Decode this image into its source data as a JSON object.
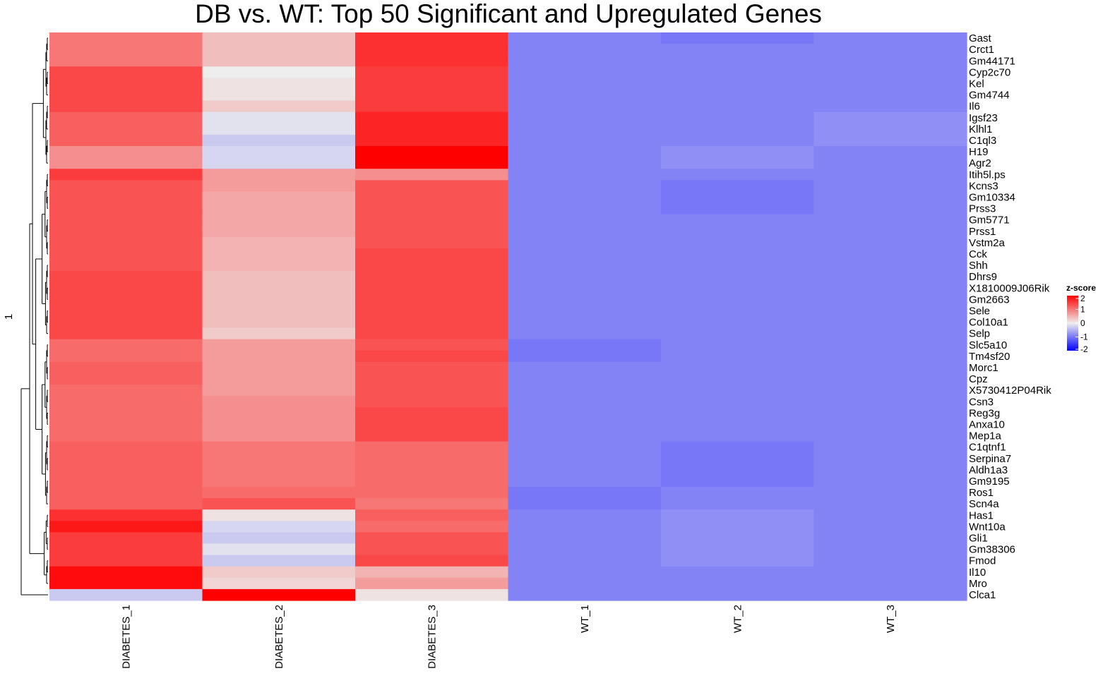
{
  "chart_data": {
    "type": "heatmap",
    "title": "DB vs. WT: Top 50 Significant and Upregulated Genes",
    "columns": [
      "DIABETES_1",
      "DIABETES_2",
      "DIABETES_3",
      "WT_1",
      "WT_2",
      "WT_3"
    ],
    "rows": [
      "Gast",
      "Crct1",
      "Gm44171",
      "Cyp2c70",
      "Kel",
      "Gm4744",
      "Il6",
      "Igsf23",
      "Klhl1",
      "C1ql3",
      "H19",
      "Agr2",
      "Itih5l.ps",
      "Kcns3",
      "Gm10334",
      "Prss3",
      "Gm5771",
      "Prss1",
      "Vstm2a",
      "Cck",
      "Shh",
      "Dhrs9",
      "X1810009J06Rik",
      "Gm2663",
      "Sele",
      "Col10a1",
      "Selp",
      "Slc5a10",
      "Tm4sf20",
      "Morc1",
      "Cpz",
      "X5730412P04Rik",
      "Csn3",
      "Reg3g",
      "Anxa10",
      "Mep1a",
      "C1qtnf1",
      "Serpina7",
      "Aldh1a3",
      "Gm9195",
      "Ros1",
      "Scn4a",
      "Has1",
      "Wnt10a",
      "Gli1",
      "Gm38306",
      "Fmod",
      "Il10",
      "Mro",
      "Clca1"
    ],
    "values": [
      [
        1.0,
        0.4,
        1.6,
        -0.9,
        -1.0,
        -0.9
      ],
      [
        1.0,
        0.4,
        1.6,
        -0.9,
        -0.9,
        -0.9
      ],
      [
        1.0,
        0.4,
        1.6,
        -0.9,
        -0.9,
        -0.9
      ],
      [
        1.4,
        0.0,
        1.5,
        -0.9,
        -0.9,
        -0.9
      ],
      [
        1.4,
        0.1,
        1.5,
        -0.9,
        -0.9,
        -0.9
      ],
      [
        1.4,
        0.1,
        1.5,
        -0.9,
        -0.9,
        -0.9
      ],
      [
        1.4,
        0.3,
        1.5,
        -0.9,
        -0.9,
        -0.9
      ],
      [
        1.2,
        -0.1,
        1.7,
        -0.9,
        -0.9,
        -0.8
      ],
      [
        1.2,
        -0.1,
        1.7,
        -0.9,
        -0.9,
        -0.8
      ],
      [
        1.2,
        -0.3,
        1.7,
        -0.9,
        -0.9,
        -0.8
      ],
      [
        0.8,
        -0.2,
        2.0,
        -0.9,
        -0.8,
        -0.9
      ],
      [
        0.8,
        -0.2,
        2.0,
        -0.9,
        -0.8,
        -0.9
      ],
      [
        1.5,
        0.7,
        0.8,
        -0.9,
        -0.9,
        -0.9
      ],
      [
        1.3,
        0.7,
        1.3,
        -0.9,
        -1.0,
        -0.9
      ],
      [
        1.3,
        0.6,
        1.3,
        -0.9,
        -1.0,
        -0.9
      ],
      [
        1.3,
        0.6,
        1.3,
        -0.9,
        -1.0,
        -0.9
      ],
      [
        1.3,
        0.6,
        1.3,
        -0.9,
        -0.9,
        -0.9
      ],
      [
        1.3,
        0.6,
        1.3,
        -0.9,
        -0.9,
        -0.9
      ],
      [
        1.3,
        0.5,
        1.3,
        -0.9,
        -0.9,
        -0.9
      ],
      [
        1.3,
        0.5,
        1.4,
        -0.9,
        -0.9,
        -0.9
      ],
      [
        1.3,
        0.5,
        1.4,
        -0.9,
        -0.9,
        -0.9
      ],
      [
        1.4,
        0.4,
        1.4,
        -0.9,
        -0.9,
        -0.9
      ],
      [
        1.4,
        0.4,
        1.4,
        -0.9,
        -0.9,
        -0.9
      ],
      [
        1.4,
        0.4,
        1.4,
        -0.9,
        -0.9,
        -0.9
      ],
      [
        1.4,
        0.4,
        1.4,
        -0.9,
        -0.9,
        -0.9
      ],
      [
        1.4,
        0.4,
        1.4,
        -0.9,
        -0.9,
        -0.9
      ],
      [
        1.4,
        0.3,
        1.4,
        -0.9,
        -0.9,
        -0.9
      ],
      [
        1.1,
        0.7,
        1.3,
        -1.0,
        -0.9,
        -0.9
      ],
      [
        1.1,
        0.7,
        1.4,
        -1.0,
        -0.9,
        -0.9
      ],
      [
        1.2,
        0.7,
        1.3,
        -0.9,
        -0.9,
        -0.9
      ],
      [
        1.2,
        0.7,
        1.3,
        -0.9,
        -0.9,
        -0.9
      ],
      [
        1.1,
        0.7,
        1.3,
        -0.9,
        -0.9,
        -0.9
      ],
      [
        1.1,
        0.8,
        1.3,
        -0.9,
        -0.9,
        -0.9
      ],
      [
        1.1,
        0.8,
        1.4,
        -0.9,
        -0.9,
        -0.9
      ],
      [
        1.1,
        0.8,
        1.4,
        -0.9,
        -0.9,
        -0.9
      ],
      [
        1.1,
        0.8,
        1.4,
        -0.9,
        -0.9,
        -0.9
      ],
      [
        1.2,
        1.0,
        1.1,
        -0.9,
        -1.0,
        -0.9
      ],
      [
        1.2,
        1.0,
        1.1,
        -0.9,
        -1.0,
        -0.9
      ],
      [
        1.2,
        1.0,
        1.1,
        -0.9,
        -1.0,
        -0.9
      ],
      [
        1.2,
        1.0,
        1.1,
        -0.9,
        -1.0,
        -0.9
      ],
      [
        1.2,
        1.1,
        1.1,
        -1.0,
        -0.9,
        -0.9
      ],
      [
        1.2,
        1.3,
        1.0,
        -1.0,
        -0.9,
        -0.9
      ],
      [
        1.6,
        0.1,
        1.2,
        -0.9,
        -0.8,
        -0.9
      ],
      [
        1.8,
        -0.2,
        1.1,
        -0.9,
        -0.8,
        -0.9
      ],
      [
        1.5,
        -0.3,
        1.3,
        -0.9,
        -0.8,
        -0.9
      ],
      [
        1.5,
        -0.1,
        1.3,
        -0.9,
        -0.8,
        -0.9
      ],
      [
        1.5,
        -0.3,
        1.4,
        -0.9,
        -0.8,
        -0.9
      ],
      [
        1.9,
        0.3,
        0.5,
        -0.9,
        -0.9,
        -0.9
      ],
      [
        1.9,
        0.2,
        0.7,
        -0.9,
        -0.9,
        -0.9
      ],
      [
        -0.3,
        2.0,
        0.1,
        -0.9,
        -0.9,
        -0.9
      ]
    ],
    "color_scale": {
      "domain": [
        -2,
        0,
        2
      ],
      "colors": [
        "#0000ff",
        "#eeeeee",
        "#ff0000"
      ],
      "legend_title": "z-score",
      "legend_ticks": [
        "2",
        "1",
        "0",
        "-1",
        "-2"
      ],
      "legend_placement": "right"
    },
    "row_dendrogram_label": "1",
    "grid": false
  }
}
